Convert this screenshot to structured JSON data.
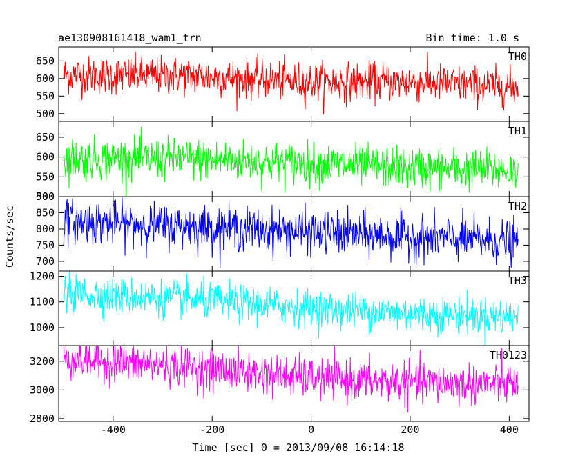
{
  "header": {
    "title": "ae130908161418_wam1_trn",
    "bin_time": "Bin time: 1.0 s"
  },
  "xlabel": "Time [sec] 0 = 2013/09/08 16:14:18",
  "ylabel": "Counts/sec",
  "chart_data": [
    {
      "type": "line",
      "name": "TH0",
      "color": "#ff0000",
      "xlim": [
        -510,
        440
      ],
      "ylim": [
        478,
        690
      ],
      "yticks": [
        500,
        550,
        600,
        650
      ],
      "x_range": [
        -500,
        418
      ],
      "trend": [
        [
          -500,
          610
        ],
        [
          -250,
          608
        ],
        [
          0,
          590
        ],
        [
          200,
          590
        ],
        [
          418,
          575
        ]
      ],
      "noise_sd": 27
    },
    {
      "type": "line",
      "name": "TH1",
      "color": "#00ff00",
      "xlim": [
        -510,
        440
      ],
      "ylim": [
        500,
        690
      ],
      "yticks": [
        500,
        550,
        600,
        650
      ],
      "x_range": [
        -500,
        418
      ],
      "trend": [
        [
          -500,
          595
        ],
        [
          -250,
          595
        ],
        [
          0,
          583
        ],
        [
          200,
          572
        ],
        [
          418,
          565
        ]
      ],
      "noise_sd": 26
    },
    {
      "type": "line",
      "name": "TH2",
      "color": "#0000ff",
      "xlim": [
        -510,
        440
      ],
      "ylim": [
        670,
        900
      ],
      "yticks": [
        700,
        750,
        800,
        850,
        900
      ],
      "x_range": [
        -500,
        418
      ],
      "trend": [
        [
          -500,
          825
        ],
        [
          -250,
          808
        ],
        [
          0,
          790
        ],
        [
          200,
          775
        ],
        [
          418,
          760
        ]
      ],
      "noise_sd": 33
    },
    {
      "type": "line",
      "name": "TH3",
      "color": "#00ffff",
      "xlim": [
        -510,
        440
      ],
      "ylim": [
        930,
        1220
      ],
      "yticks": [
        1000,
        1100,
        1200
      ],
      "x_range": [
        -500,
        418
      ],
      "trend": [
        [
          -500,
          1135
        ],
        [
          -250,
          1110
        ],
        [
          0,
          1075
        ],
        [
          200,
          1055
        ],
        [
          418,
          1040
        ]
      ],
      "noise_sd": 35
    },
    {
      "type": "line",
      "name": "TH0123",
      "color": "#ff00ff",
      "xlim": [
        -510,
        440
      ],
      "ylim": [
        2780,
        3310
      ],
      "yticks": [
        2800,
        3000,
        3200
      ],
      "x_range": [
        -500,
        418
      ],
      "trend": [
        [
          -500,
          3220
        ],
        [
          -250,
          3160
        ],
        [
          0,
          3080
        ],
        [
          200,
          3050
        ],
        [
          418,
          3040
        ]
      ],
      "noise_sd": 70
    }
  ],
  "xticks": [
    -400,
    -200,
    0,
    200,
    400
  ]
}
